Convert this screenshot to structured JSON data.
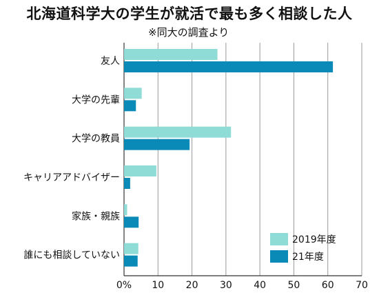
{
  "title": "北海道科学大の学生が就活で最も多く相談した人",
  "subtitle": "※同大の調査より",
  "chart_data": {
    "type": "bar",
    "orientation": "horizontal",
    "title": "北海道科学大の学生が就活で最も多く相談した人",
    "subtitle": "※同大の調査より",
    "categories": [
      "友人",
      "大学の先輩",
      "大学の教員",
      "キャリアアドバイザー",
      "家族・親族",
      "誰にも相談していない"
    ],
    "series": [
      {
        "name": "2019年度",
        "color": "#8fdcd6",
        "values": [
          27.5,
          5.2,
          31.5,
          9.5,
          0.9,
          4.2
        ]
      },
      {
        "name": "21年度",
        "color": "#0a8ab6",
        "values": [
          61.5,
          3.5,
          19.3,
          1.8,
          4.3,
          4.0
        ]
      }
    ],
    "xlim": [
      0,
      70
    ],
    "xticks": [
      0,
      10,
      20,
      30,
      40,
      50,
      60,
      70
    ],
    "xtick_labels": [
      "0%",
      "10",
      "20",
      "30",
      "40",
      "50",
      "60",
      "70"
    ],
    "grid": true,
    "legend_position": "bottom-right"
  }
}
